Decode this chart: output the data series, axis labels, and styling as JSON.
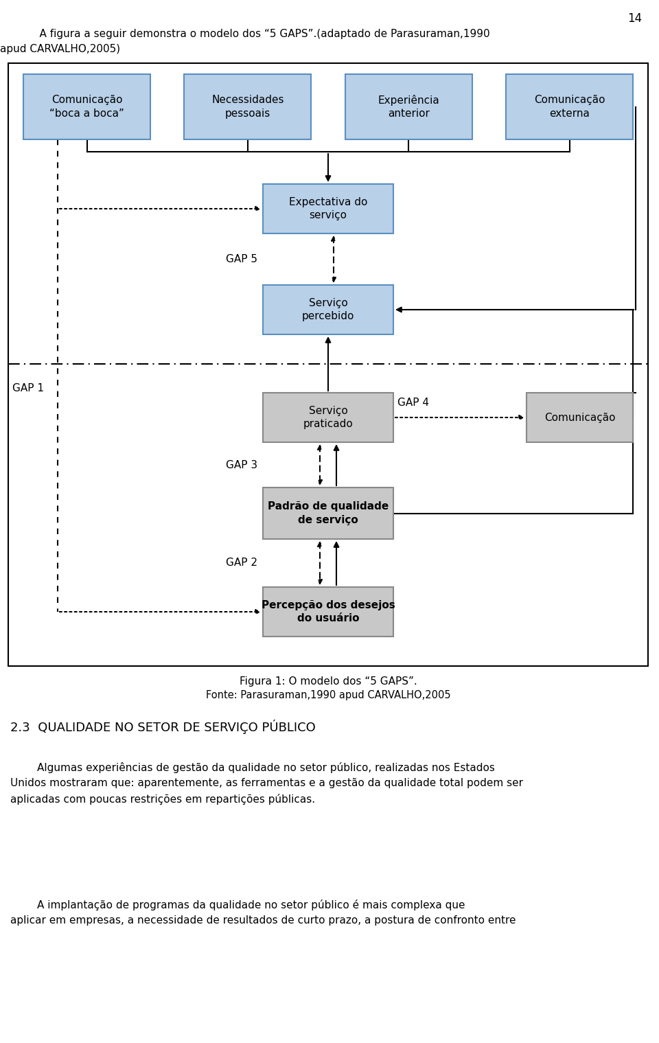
{
  "page_number": "14",
  "intro_line1": "    A figura a seguir demonstra o modelo dos “5 GAPS”.(adaptado de Parasuraman,1990",
  "intro_line2": "apud CARVALHO,2005)",
  "figure_caption_line1": "Figura 1: O modelo dos “5 GAPS”.",
  "figure_caption_line2": "Fonte: Parasuraman,1990 apud CARVALHO,2005",
  "section_title": "2.3  QUALIDADE NO SETOR DE SERVIÇO PÚBLICO",
  "body_text1": "        Algumas experiências de gestão da qualidade no setor público, realizadas nos Estados\nUnidos mostraram que: aparentemente, as ferramentas e a gestão da qualidade total podem ser\naplicadas com poucas restrições em repartições públicas.",
  "body_text2": "        A implantação de programas da qualidade no setor público é mais complexa que\naplicar em empresas, a necessidade de resultados de curto prazo, a postura de confronto entre",
  "blue_fc": "#b8d0e8",
  "blue_ec": "#5a8fc0",
  "gray_fc": "#c8c8c8",
  "gray_ec": "#888888",
  "lbl_comunicacao_boca": "Comunicação\n“boca a boca”",
  "lbl_necessidades": "Necessidades\npessoais",
  "lbl_experiencia": "Experiência\nanterior",
  "lbl_comunicacao_ext": "Comunicação\nexterna",
  "lbl_expectativa": "Expectativa do\nserviço",
  "lbl_percebido": "Serviço\npercebido",
  "lbl_praticado": "Serviço\npraticado",
  "lbl_comunicacao_right": "Comunicação",
  "lbl_padrao": "Padrão de qualidade\nde serviço",
  "lbl_percepcao": "Percepção dos desejos\ndo usuário",
  "gap1": "GAP 1",
  "gap2": "GAP 2",
  "gap3": "GAP 3",
  "gap4": "GAP 4",
  "gap5": "GAP 5",
  "background_color": "#ffffff"
}
